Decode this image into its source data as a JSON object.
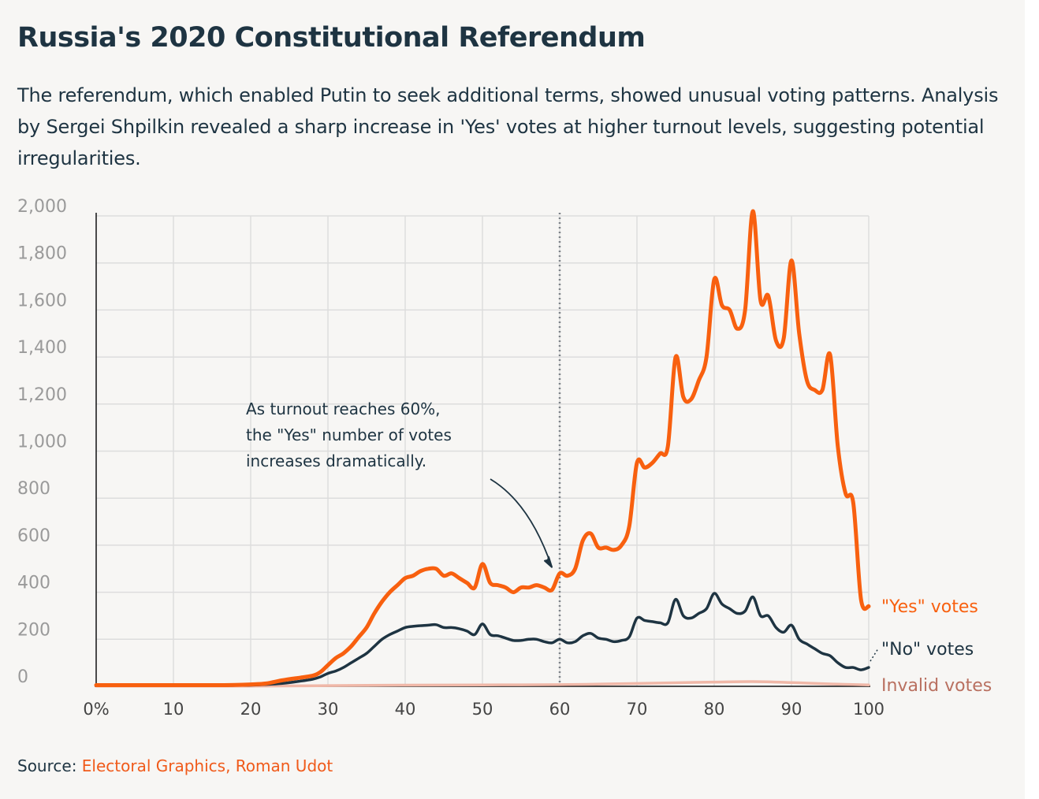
{
  "title": "Russia's 2020 Constitutional Referendum",
  "subtitle": "The referendum, which enabled Putin to seek additional terms, showed unusual voting patterns. Analysis by Sergei Shpilkin revealed a sharp increase in 'Yes' votes at higher turnout levels, suggesting potential irregularities.",
  "source": {
    "label": "Source:",
    "text": "Electoral Graphics, Roman Udot"
  },
  "colors": {
    "yes": "#f8600f",
    "no": "#1e3442",
    "invalid": "#f0b8a8",
    "invalid_label": "#b97060",
    "grid": "#dddddd",
    "background": "#f7f6f4"
  },
  "chart_data": {
    "type": "line",
    "xlim": [
      0,
      100
    ],
    "ylim": [
      0,
      2000
    ],
    "x_ticks": [
      0,
      10,
      20,
      30,
      40,
      50,
      60,
      70,
      80,
      90,
      100
    ],
    "x_tick_labels": [
      "0%",
      "10",
      "20",
      "30",
      "40",
      "50",
      "60",
      "70",
      "80",
      "90",
      "100"
    ],
    "y_ticks": [
      0,
      200,
      400,
      600,
      800,
      1000,
      1200,
      1400,
      1600,
      1800,
      2000
    ],
    "y_tick_labels": [
      "0",
      "200",
      "400",
      "600",
      "800",
      "1,000",
      "1,200",
      "1,400",
      "1,600",
      "1,800",
      "2,000"
    ],
    "grid": true,
    "reference_line": {
      "x": 60,
      "style": "dotted"
    },
    "annotation": {
      "lines": [
        "As turnout reaches 60%,",
        "the \"Yes\" number of votes",
        "increases dramatically."
      ],
      "points_to": {
        "x": 60,
        "y": 480
      }
    },
    "series": [
      {
        "name": "\"Yes\" votes",
        "color": "#f8600f",
        "x": [
          0,
          10,
          15,
          18,
          20,
          22,
          24,
          26,
          28,
          29,
          30,
          31,
          32,
          33,
          34,
          35,
          36,
          37,
          38,
          39,
          40,
          41,
          42,
          43,
          44,
          45,
          46,
          47,
          48,
          49,
          50,
          51,
          52,
          53,
          54,
          55,
          56,
          57,
          58,
          59,
          60,
          61,
          62,
          63,
          64,
          65,
          66,
          67,
          68,
          69,
          70,
          71,
          72,
          73,
          74,
          75,
          76,
          77,
          78,
          79,
          80,
          81,
          82,
          83,
          84,
          85,
          86,
          87,
          88,
          89,
          90,
          91,
          92,
          93,
          94,
          95,
          96,
          97,
          98,
          99,
          100
        ],
        "y": [
          5,
          5,
          5,
          6,
          8,
          12,
          25,
          35,
          45,
          60,
          90,
          120,
          140,
          170,
          210,
          250,
          310,
          360,
          400,
          430,
          460,
          470,
          490,
          500,
          500,
          470,
          480,
          460,
          440,
          420,
          520,
          440,
          430,
          420,
          400,
          420,
          420,
          430,
          420,
          410,
          480,
          470,
          500,
          620,
          650,
          590,
          590,
          580,
          600,
          680,
          950,
          930,
          950,
          990,
          1020,
          1400,
          1230,
          1220,
          1300,
          1400,
          1730,
          1620,
          1600,
          1520,
          1600,
          2020,
          1640,
          1660,
          1470,
          1480,
          1810,
          1500,
          1300,
          1260,
          1260,
          1410,
          1020,
          820,
          780,
          370,
          340
        ]
      },
      {
        "name": "\"No\" votes",
        "color": "#1e3442",
        "x": [
          0,
          10,
          15,
          18,
          20,
          22,
          24,
          26,
          28,
          29,
          30,
          31,
          32,
          33,
          34,
          35,
          36,
          37,
          38,
          39,
          40,
          41,
          42,
          43,
          44,
          45,
          46,
          47,
          48,
          49,
          50,
          51,
          52,
          53,
          54,
          55,
          56,
          57,
          58,
          59,
          60,
          61,
          62,
          63,
          64,
          65,
          66,
          67,
          68,
          69,
          70,
          71,
          72,
          73,
          74,
          75,
          76,
          77,
          78,
          79,
          80,
          81,
          82,
          83,
          84,
          85,
          86,
          87,
          88,
          89,
          90,
          91,
          92,
          93,
          94,
          95,
          96,
          97,
          98,
          99,
          100
        ],
        "y": [
          3,
          3,
          3,
          4,
          5,
          8,
          12,
          20,
          30,
          40,
          55,
          65,
          80,
          100,
          120,
          140,
          170,
          200,
          220,
          235,
          250,
          255,
          258,
          260,
          262,
          250,
          250,
          245,
          235,
          220,
          265,
          220,
          215,
          205,
          195,
          195,
          200,
          200,
          190,
          185,
          200,
          185,
          190,
          215,
          225,
          205,
          200,
          190,
          195,
          210,
          290,
          280,
          275,
          270,
          270,
          370,
          300,
          290,
          310,
          330,
          395,
          350,
          330,
          310,
          320,
          380,
          300,
          300,
          250,
          230,
          260,
          200,
          180,
          160,
          140,
          130,
          100,
          80,
          80,
          70,
          80
        ]
      },
      {
        "name": "Invalid votes",
        "color": "#f0b8a8",
        "x": [
          0,
          20,
          30,
          40,
          50,
          60,
          70,
          75,
          80,
          85,
          90,
          95,
          100
        ],
        "y": [
          1,
          1,
          3,
          5,
          6,
          7,
          12,
          15,
          18,
          20,
          16,
          10,
          6
        ]
      }
    ]
  }
}
